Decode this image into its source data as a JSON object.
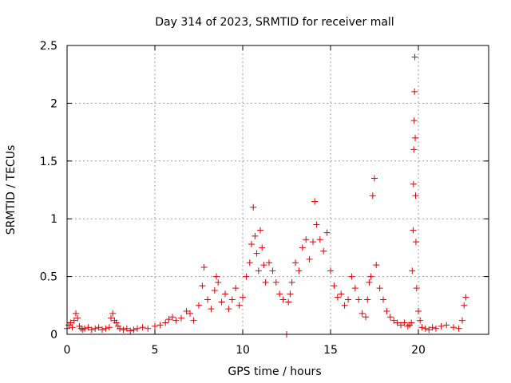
{
  "chart_data": {
    "type": "scatter",
    "title": "Day 314 of 2023, SRMTID for receiver mall",
    "xlabel": "GPS time / hours",
    "ylabel": "SRMTID / TECUs",
    "xlim": [
      0,
      24
    ],
    "ylim": [
      0,
      2.5
    ],
    "xticks": [
      0,
      5,
      10,
      15,
      20
    ],
    "xtick_labels": [
      "0",
      "5",
      "10",
      "15",
      "20"
    ],
    "yticks": [
      0,
      0.5,
      1,
      1.5,
      2,
      2.5
    ],
    "ytick_labels": [
      "0",
      "0.5",
      "1",
      "1.5",
      "2",
      "2.5"
    ],
    "grid": true,
    "marker": "+",
    "color": "#e00000",
    "series": [
      {
        "name": "SRMTID",
        "x": [
          0.0,
          0.1,
          0.2,
          0.3,
          0.4,
          0.5,
          0.6,
          0.7,
          0.8,
          0.9,
          1.0,
          1.2,
          1.4,
          1.6,
          1.8,
          2.0,
          2.2,
          2.4,
          2.5,
          2.6,
          2.7,
          2.8,
          2.9,
          3.0,
          3.2,
          3.4,
          3.6,
          3.8,
          4.0,
          4.3,
          4.6,
          5.0,
          5.3,
          5.6,
          5.8,
          6.0,
          6.2,
          6.5,
          6.8,
          7.0,
          7.2,
          7.5,
          7.7,
          7.8,
          8.0,
          8.2,
          8.4,
          8.5,
          8.6,
          8.8,
          9.0,
          9.2,
          9.4,
          9.6,
          9.8,
          10.0,
          10.2,
          10.4,
          10.5,
          10.6,
          10.7,
          10.8,
          10.9,
          11.0,
          11.1,
          11.2,
          11.3,
          11.5,
          11.7,
          11.9,
          12.1,
          12.3,
          12.5,
          12.6,
          12.7,
          12.8,
          13.0,
          13.2,
          13.4,
          13.6,
          13.8,
          14.0,
          14.1,
          14.2,
          14.4,
          14.6,
          14.8,
          15.0,
          15.2,
          15.4,
          15.6,
          15.8,
          16.0,
          16.2,
          16.4,
          16.6,
          16.8,
          17.0,
          17.1,
          17.2,
          17.3,
          17.4,
          17.5,
          17.6,
          17.8,
          18.0,
          18.2,
          18.4,
          18.6,
          18.8,
          19.0,
          19.2,
          19.4,
          19.5,
          19.6,
          19.65,
          19.7,
          19.72,
          19.74,
          19.76,
          19.78,
          19.8,
          19.82,
          19.84,
          19.86,
          19.9,
          20.0,
          20.1,
          20.2,
          20.4,
          20.6,
          20.8,
          21.0,
          21.3,
          21.6,
          22.0,
          22.3,
          22.5,
          22.6,
          22.7
        ],
        "values": [
          0.05,
          0.08,
          0.1,
          0.06,
          0.12,
          0.18,
          0.14,
          0.07,
          0.05,
          0.04,
          0.05,
          0.06,
          0.04,
          0.05,
          0.06,
          0.04,
          0.05,
          0.06,
          0.14,
          0.18,
          0.12,
          0.1,
          0.07,
          0.05,
          0.04,
          0.05,
          0.03,
          0.04,
          0.05,
          0.06,
          0.05,
          0.07,
          0.08,
          0.1,
          0.13,
          0.15,
          0.12,
          0.14,
          0.2,
          0.18,
          0.12,
          0.25,
          0.42,
          0.58,
          0.3,
          0.22,
          0.38,
          0.5,
          0.45,
          0.28,
          0.35,
          0.22,
          0.3,
          0.4,
          0.25,
          0.32,
          0.5,
          0.62,
          0.78,
          1.1,
          0.85,
          0.7,
          0.55,
          0.9,
          0.75,
          0.6,
          0.45,
          0.62,
          0.55,
          0.45,
          0.35,
          0.3,
          0.0,
          0.28,
          0.35,
          0.45,
          0.62,
          0.55,
          0.75,
          0.82,
          0.65,
          0.8,
          1.15,
          0.95,
          0.82,
          0.72,
          0.88,
          0.55,
          0.42,
          0.32,
          0.35,
          0.25,
          0.3,
          0.5,
          0.4,
          0.3,
          0.18,
          0.15,
          0.3,
          0.45,
          0.5,
          1.2,
          1.35,
          0.6,
          0.4,
          0.3,
          0.2,
          0.15,
          0.12,
          0.1,
          0.08,
          0.1,
          0.07,
          0.08,
          0.1,
          0.55,
          0.9,
          1.3,
          1.6,
          1.85,
          2.1,
          2.4,
          1.7,
          1.2,
          0.8,
          0.4,
          0.2,
          0.12,
          0.06,
          0.05,
          0.04,
          0.06,
          0.05,
          0.07,
          0.08,
          0.06,
          0.05,
          0.12,
          0.25,
          0.32
        ]
      }
    ]
  }
}
